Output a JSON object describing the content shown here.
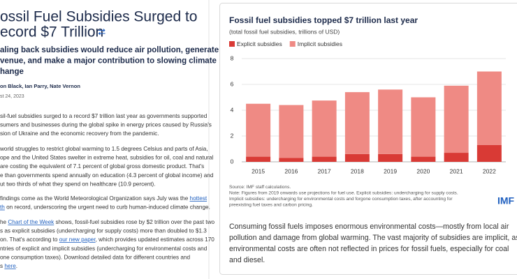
{
  "article": {
    "title": [
      "ossil Fuel Subsidies Surged to",
      "ecord $7 Trillion"
    ],
    "subtitle": [
      "aling back subsidies would reduce air pollution, generate",
      "venue, and make a major contribution to slowing climate",
      "hange"
    ],
    "authors": "on Black, Ian Parry, Nate Vernon",
    "date": "st 24, 2023",
    "paragraphs": [
      [
        [
          {
            "text": "sil-fuel subsidies surged to a record $7 trillion last year as governments supported"
          }
        ],
        [
          {
            "text": "sumers and businesses during the global spike in energy prices caused by Russia's"
          }
        ],
        [
          {
            "text": "sion of Ukraine and the economic recovery from the pandemic."
          }
        ]
      ],
      [
        [
          {
            "text": "world struggles to restrict global warming to 1.5 degrees Celsius and parts of Asia,"
          }
        ],
        [
          {
            "text": "ope and the United States swelter in extreme heat, subsidies for oil, coal and natural"
          }
        ],
        [
          {
            "text": "are costing the equivalent of 7.1 percent of global gross domestic product. That's"
          }
        ],
        [
          {
            "text": "e than governments spend annually on education (4.3 percent of global income) and"
          }
        ],
        [
          {
            "text": "ut two thirds of what they spend on healthcare (10.9 percent)."
          }
        ]
      ],
      [
        [
          {
            "text": "findings come as the World Meteorological Organization says July was the "
          },
          {
            "text": "hottest",
            "link": true
          }
        ],
        [
          {
            "text": "th",
            "link": true
          },
          {
            "text": " on record, underscoring the urgent need to curb human-induced climate change."
          }
        ]
      ],
      [
        [
          {
            "text": "he "
          },
          {
            "text": "Chart of the Week",
            "link": true
          },
          {
            "text": " shows, fossil-fuel subsidies rose by $2 trillion over the past two"
          }
        ],
        [
          {
            "text": "s as explicit subsidies (undercharging for supply costs) more than doubled to $1.3"
          }
        ],
        [
          {
            "text": "on. That's according to "
          },
          {
            "text": "our new paper",
            "link": true
          },
          {
            "text": ", which provides updated estimates across 170"
          }
        ],
        [
          {
            "text": "ntries of explicit and implicit subsidies (undercharging for environmental costs and"
          }
        ],
        [
          {
            "text": "one consumption taxes). Download detailed data for different countries and"
          }
        ],
        [
          {
            "text": "s "
          },
          {
            "text": "here",
            "link": true
          },
          {
            "text": "."
          }
        ]
      ]
    ]
  },
  "chart_data": {
    "type": "stacked_bar",
    "title": "Fossil fuel subsidies topped $7 trillion last year",
    "subtitle": "(total fossil fuel subsidies, trillions of USD)",
    "categories": [
      "2015",
      "2016",
      "2017",
      "2018",
      "2019",
      "2020",
      "2021",
      "2022"
    ],
    "series": [
      {
        "name": "Explicit subsidies",
        "color": "#d93a35",
        "values": [
          0.4,
          0.3,
          0.4,
          0.6,
          0.6,
          0.4,
          0.7,
          1.3
        ]
      },
      {
        "name": "Implicit subsidies",
        "color": "#ef8a84",
        "values": [
          4.1,
          4.1,
          4.35,
          4.8,
          5.0,
          4.6,
          5.2,
          5.7
        ]
      }
    ],
    "ylim": [
      0,
      8
    ],
    "yticks": [
      0,
      2,
      4,
      6,
      8
    ],
    "grid": true,
    "legend": "top-left",
    "source": [
      "Source: IMF staff calculations.",
      "Note: Figures from 2019 onwards use projections for fuel use. Explicit subsidies: undercharging for supply costs.",
      "Implicit subsidies: undercharging for environmental costs and forgone consumption taxes, after accounting for",
      "preexisting fuel taxes and carbon pricing."
    ],
    "logo": "IMF",
    "caption": [
      "Consuming fossil fuels imposes enormous environmental costs—mostly from local air",
      "pollution and damage from global warming. The vast majority of subsidies are implicit, as",
      "environmental costs are often not reflected in prices for fossil fuels, especially for coal",
      "and diesel."
    ]
  }
}
